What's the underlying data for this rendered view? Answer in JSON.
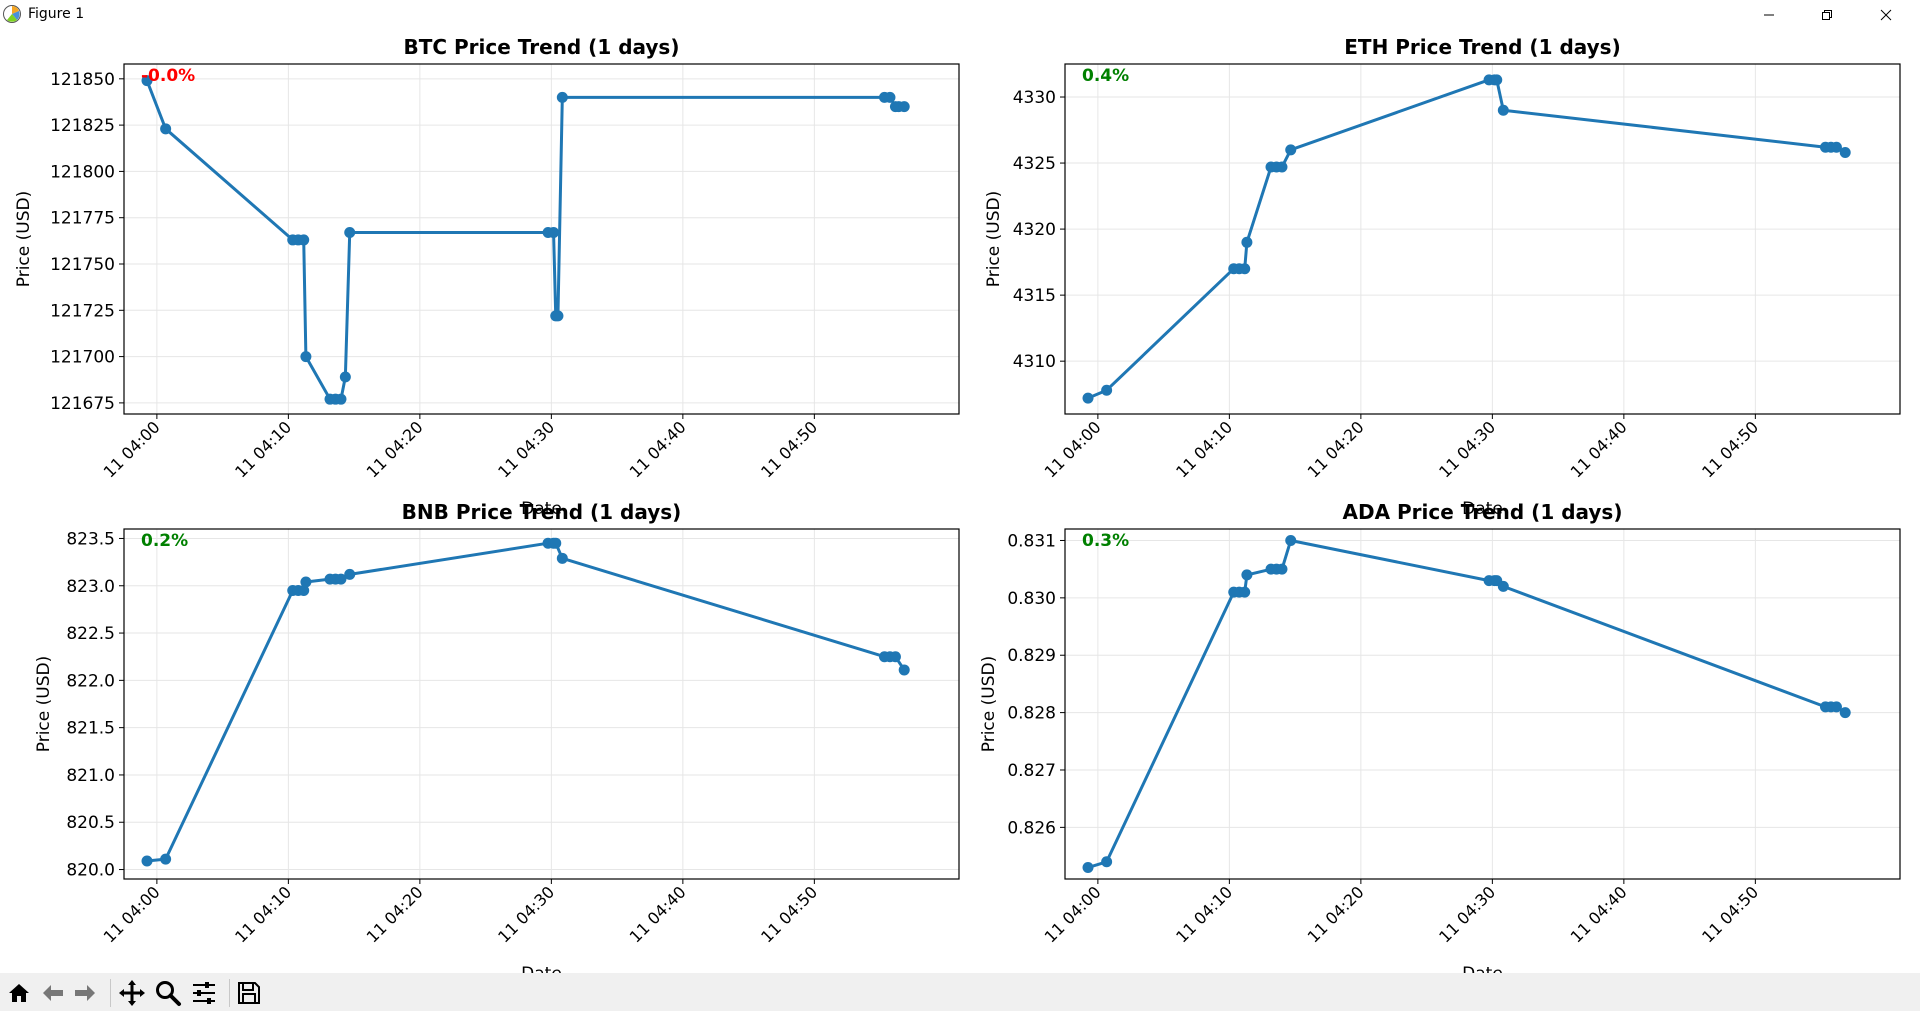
{
  "window": {
    "title": "Figure 1"
  },
  "toolbar": {
    "buttons": [
      {
        "name": "home-icon"
      },
      {
        "name": "back-arrow-icon"
      },
      {
        "name": "forward-arrow-icon"
      },
      {
        "name": "pan-icon"
      },
      {
        "name": "zoom-icon"
      },
      {
        "name": "configure-subplots-icon"
      },
      {
        "name": "save-icon"
      }
    ]
  },
  "colors": {
    "line": "#1f77b4",
    "negative": "#ff0000",
    "positive": "#008000",
    "grid": "#e6e6e6"
  },
  "chart_data": [
    {
      "type": "line",
      "title": "BTC Price Trend (1 days)",
      "xlabel": "Date",
      "ylabel": "Price (USD)",
      "change_label": "-0.0%",
      "change_sign": "negative",
      "xlim": [
        "11 03:57:30",
        "11 05:01:00"
      ],
      "ylim": [
        121669,
        121858
      ],
      "x_ticks": [
        "11 04:00",
        "11 04:10",
        "11 04:20",
        "11 04:30",
        "11 04:40",
        "11 04:50"
      ],
      "y_ticks": [
        121675,
        121700,
        121725,
        121750,
        121775,
        121800,
        121825,
        121850
      ],
      "grid": true,
      "x": [
        "11 03:59:15",
        "11 04:00:40",
        "11 04:10:20",
        "11 04:10:45",
        "11 04:11:10",
        "11 04:11:20",
        "11 04:13:10",
        "11 04:13:35",
        "11 04:14:00",
        "11 04:14:20",
        "11 04:14:40",
        "11 04:29:45",
        "11 04:30:10",
        "11 04:30:20",
        "11 04:30:30",
        "11 04:30:50",
        "11 04:55:20",
        "11 04:55:45",
        "11 04:56:10",
        "11 04:56:25",
        "11 04:56:50"
      ],
      "values": [
        121849,
        121823,
        121763,
        121763,
        121763,
        121700,
        121677,
        121677,
        121677,
        121689,
        121767,
        121767,
        121767,
        121722,
        121722,
        121840,
        121840,
        121840,
        121835,
        121835,
        121835
      ]
    },
    {
      "type": "line",
      "title": "ETH Price Trend (1 days)",
      "xlabel": "Date",
      "ylabel": "Price (USD)",
      "change_label": "0.4%",
      "change_sign": "positive",
      "xlim": [
        "11 03:57:30",
        "11 05:01:00"
      ],
      "ylim": [
        4306.0,
        4332.5
      ],
      "x_ticks": [
        "11 04:00",
        "11 04:10",
        "11 04:20",
        "11 04:30",
        "11 04:40",
        "11 04:50"
      ],
      "y_ticks": [
        4310,
        4315,
        4320,
        4325,
        4330
      ],
      "grid": true,
      "x": [
        "11 03:59:15",
        "11 04:00:40",
        "11 04:10:20",
        "11 04:10:45",
        "11 04:11:10",
        "11 04:11:20",
        "11 04:13:10",
        "11 04:13:35",
        "11 04:14:00",
        "11 04:14:40",
        "11 04:29:45",
        "11 04:30:10",
        "11 04:30:20",
        "11 04:30:50",
        "11 04:55:20",
        "11 04:55:45",
        "11 04:56:10",
        "11 04:56:50"
      ],
      "values": [
        4307.2,
        4307.8,
        4317.0,
        4317.0,
        4317.0,
        4319.0,
        4324.7,
        4324.7,
        4324.7,
        4326.0,
        4331.3,
        4331.3,
        4331.3,
        4329.0,
        4326.2,
        4326.2,
        4326.2,
        4325.8
      ]
    },
    {
      "type": "line",
      "title": "BNB Price Trend (1 days)",
      "xlabel": "Date",
      "ylabel": "Price (USD)",
      "change_label": "0.2%",
      "change_sign": "positive",
      "xlim": [
        "11 03:57:30",
        "11 05:01:00"
      ],
      "ylim": [
        819.9,
        823.6
      ],
      "x_ticks": [
        "11 04:00",
        "11 04:10",
        "11 04:20",
        "11 04:30",
        "11 04:40",
        "11 04:50"
      ],
      "y_ticks": [
        820.0,
        820.5,
        821.0,
        821.5,
        822.0,
        822.5,
        823.0,
        823.5
      ],
      "y_tick_labels": [
        "820.0",
        "820.5",
        "821.0",
        "821.5",
        "822.0",
        "822.5",
        "823.0",
        "823.5"
      ],
      "grid": true,
      "x": [
        "11 03:59:15",
        "11 04:00:40",
        "11 04:10:20",
        "11 04:10:45",
        "11 04:11:10",
        "11 04:11:20",
        "11 04:13:10",
        "11 04:13:35",
        "11 04:14:00",
        "11 04:14:40",
        "11 04:29:45",
        "11 04:30:10",
        "11 04:30:20",
        "11 04:30:50",
        "11 04:55:20",
        "11 04:55:45",
        "11 04:56:10",
        "11 04:56:50"
      ],
      "values": [
        820.09,
        820.11,
        822.95,
        822.95,
        822.95,
        823.04,
        823.07,
        823.07,
        823.07,
        823.12,
        823.45,
        823.45,
        823.45,
        823.29,
        822.25,
        822.25,
        822.25,
        822.11
      ]
    },
    {
      "type": "line",
      "title": "ADA Price Trend (1 days)",
      "xlabel": "Date",
      "ylabel": "Price (USD)",
      "change_label": "0.3%",
      "change_sign": "positive",
      "xlim": [
        "11 03:57:30",
        "11 05:01:00"
      ],
      "ylim": [
        0.8251,
        0.8312
      ],
      "x_ticks": [
        "11 04:00",
        "11 04:10",
        "11 04:20",
        "11 04:30",
        "11 04:40",
        "11 04:50"
      ],
      "y_ticks": [
        0.826,
        0.827,
        0.828,
        0.829,
        0.83,
        0.831
      ],
      "y_tick_labels": [
        "0.826",
        "0.827",
        "0.828",
        "0.829",
        "0.830",
        "0.831"
      ],
      "grid": true,
      "x": [
        "11 03:59:15",
        "11 04:00:40",
        "11 04:10:20",
        "11 04:10:45",
        "11 04:11:10",
        "11 04:11:20",
        "11 04:13:10",
        "11 04:13:35",
        "11 04:14:00",
        "11 04:14:40",
        "11 04:29:45",
        "11 04:30:10",
        "11 04:30:20",
        "11 04:30:50",
        "11 04:55:20",
        "11 04:55:45",
        "11 04:56:10",
        "11 04:56:50"
      ],
      "values": [
        0.8253,
        0.8254,
        0.8301,
        0.8301,
        0.8301,
        0.8304,
        0.8305,
        0.8305,
        0.8305,
        0.831,
        0.8303,
        0.8303,
        0.8303,
        0.8302,
        0.8281,
        0.8281,
        0.8281,
        0.828
      ]
    }
  ]
}
